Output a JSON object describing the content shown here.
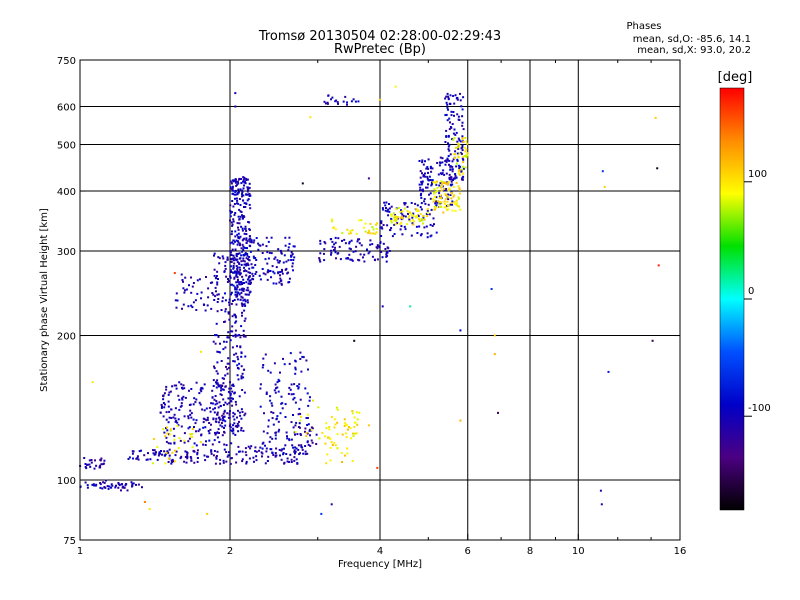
{
  "chart_data": {
    "type": "scatter",
    "title": "Tromsø 20130504 02:28:00-02:29:43",
    "subtitle": "RwPretec (Bp)",
    "xlabel": "Frequency [MHz]",
    "ylabel": "Stationary phase Virtual Height [km]",
    "x_scale": "log",
    "y_scale": "log",
    "xlim": [
      1,
      16
    ],
    "ylim": [
      75,
      750
    ],
    "x_ticks": [
      1,
      2,
      4,
      6,
      8,
      10,
      16
    ],
    "x_ticklabels": [
      "1",
      "2",
      "4",
      "6",
      "8",
      "10",
      "16"
    ],
    "x_minor": [
      3,
      5,
      7,
      9,
      12,
      14
    ],
    "y_ticks": [
      75,
      100,
      200,
      300,
      400,
      500,
      600,
      750
    ],
    "y_ticklabels": [
      "75",
      "100",
      "200",
      "300",
      "400",
      "500",
      "600",
      "750"
    ],
    "grid": true,
    "stats": {
      "heading": "Phases",
      "line_o": "mean, sd,O:  -85.6, 14.1",
      "line_x": "mean, sd,X:   93.0, 20.2"
    },
    "colorbar": {
      "label": "[deg]",
      "range": [
        -180,
        180
      ],
      "ticks": [
        100,
        0,
        -100
      ],
      "ticklabels": [
        "100",
        "0",
        "-100"
      ],
      "colors": [
        "#ff0000",
        "#ff8c00",
        "#ffff00",
        "#00e000",
        "#00ffff",
        "#0050ff",
        "#0000c8",
        "#4b0082",
        "#000000"
      ]
    },
    "series": [
      {
        "clusters": [
          {
            "f": [
              1.0,
              1.12
            ],
            "h": [
              105,
              112
            ],
            "phase": -110,
            "n": 25
          },
          {
            "f": [
              1.0,
              1.35
            ],
            "h": [
              96,
              99
            ],
            "phase": -105,
            "n": 35
          },
          {
            "f": [
              1.08,
              1.25
            ],
            "h": [
              95,
              100
            ],
            "phase": -110,
            "n": 15
          },
          {
            "f": [
              1.25,
              1.5
            ],
            "h": [
              110,
              116
            ],
            "phase": -105,
            "n": 40
          },
          {
            "f": [
              1.5,
              2.0
            ],
            "h": [
              108,
              116
            ],
            "phase": -108,
            "n": 60
          },
          {
            "f": [
              2.0,
              2.8
            ],
            "h": [
              108,
              118
            ],
            "phase": -110,
            "n": 70
          },
          {
            "f": [
              2.75,
              3.0
            ],
            "h": [
              118,
              130
            ],
            "phase": -110,
            "n": 20
          },
          {
            "f": [
              1.45,
              2.05
            ],
            "h": [
              118,
              160
            ],
            "phase": -105,
            "n": 200
          },
          {
            "f": [
              1.4,
              1.75
            ],
            "h": [
              108,
              130
            ],
            "phase": 95,
            "n": 28
          },
          {
            "f": [
              1.85,
              2.15
            ],
            "h": [
              125,
              300
            ],
            "phase": -105,
            "n": 280
          },
          {
            "f": [
              2.0,
              2.2
            ],
            "h": [
              230,
              430
            ],
            "phase": -100,
            "n": 300
          },
          {
            "f": [
              2.15,
              2.7
            ],
            "h": [
              255,
              320
            ],
            "phase": -102,
            "n": 120
          },
          {
            "f": [
              1.55,
              1.85
            ],
            "h": [
              225,
              265
            ],
            "phase": -108,
            "n": 40
          },
          {
            "f": [
              2.3,
              2.9
            ],
            "h": [
              112,
              185
            ],
            "phase": -100,
            "n": 140
          },
          {
            "f": [
              2.7,
              3.4
            ],
            "h": [
              120,
              150
            ],
            "phase": 95,
            "n": 18
          },
          {
            "f": [
              3.1,
              3.6
            ],
            "h": [
              108,
              132
            ],
            "phase": 100,
            "n": 40
          },
          {
            "f": [
              3.4,
              3.7
            ],
            "h": [
              128,
              140
            ],
            "phase": 100,
            "n": 12
          },
          {
            "f": [
              3.0,
              4.2
            ],
            "h": [
              285,
              320
            ],
            "phase": -105,
            "n": 90
          },
          {
            "f": [
              3.2,
              4.0
            ],
            "h": [
              325,
              350
            ],
            "phase": 95,
            "n": 30
          },
          {
            "f": [
              4.0,
              5.2
            ],
            "h": [
              320,
              380
            ],
            "phase": -100,
            "n": 90
          },
          {
            "f": [
              4.2,
              5.0
            ],
            "h": [
              340,
              370
            ],
            "phase": 95,
            "n": 60
          },
          {
            "f": [
              4.8,
              5.6
            ],
            "h": [
              370,
              470
            ],
            "phase": -100,
            "n": 120
          },
          {
            "f": [
              5.1,
              5.8
            ],
            "h": [
              360,
              420
            ],
            "phase": 100,
            "n": 90
          },
          {
            "f": [
              5.4,
              5.9
            ],
            "h": [
              420,
              640
            ],
            "phase": -100,
            "n": 120
          },
          {
            "f": [
              5.6,
              6.0
            ],
            "h": [
              430,
              520
            ],
            "phase": 95,
            "n": 40
          },
          {
            "f": [
              3.05,
              3.75
            ],
            "h": [
              605,
              635
            ],
            "phase": -100,
            "n": 20
          }
        ],
        "points": [
          {
            "f": 2.05,
            "h": 600,
            "phase": -110
          },
          {
            "f": 2.05,
            "h": 640,
            "phase": -100
          },
          {
            "f": 2.8,
            "h": 415,
            "phase": -170
          },
          {
            "f": 2.9,
            "h": 570,
            "phase": 100
          },
          {
            "f": 3.8,
            "h": 425,
            "phase": -130
          },
          {
            "f": 4.0,
            "h": 620,
            "phase": 110
          },
          {
            "f": 4.3,
            "h": 660,
            "phase": 95
          },
          {
            "f": 4.05,
            "h": 230,
            "phase": -100
          },
          {
            "f": 4.6,
            "h": 230,
            "phase": 20
          },
          {
            "f": 5.8,
            "h": 205,
            "phase": -90
          },
          {
            "f": 5.8,
            "h": 133,
            "phase": 120
          },
          {
            "f": 6.7,
            "h": 250,
            "phase": -60
          },
          {
            "f": 6.8,
            "h": 200,
            "phase": 110
          },
          {
            "f": 6.8,
            "h": 183,
            "phase": 120
          },
          {
            "f": 6.9,
            "h": 138,
            "phase": -150
          },
          {
            "f": 3.05,
            "h": 85,
            "phase": -60
          },
          {
            "f": 3.2,
            "h": 89,
            "phase": -110
          },
          {
            "f": 3.55,
            "h": 195,
            "phase": -170
          },
          {
            "f": 3.8,
            "h": 130,
            "phase": 110
          },
          {
            "f": 3.95,
            "h": 106,
            "phase": 160
          },
          {
            "f": 1.35,
            "h": 90,
            "phase": 140
          },
          {
            "f": 1.38,
            "h": 87,
            "phase": 100
          },
          {
            "f": 1.55,
            "h": 270,
            "phase": 160
          },
          {
            "f": 1.6,
            "h": 268,
            "phase": -110
          },
          {
            "f": 1.75,
            "h": 185,
            "phase": 100
          },
          {
            "f": 1.06,
            "h": 160,
            "phase": 100
          },
          {
            "f": 1.8,
            "h": 85,
            "phase": 110
          },
          {
            "f": 11.1,
            "h": 95,
            "phase": -110
          },
          {
            "f": 11.2,
            "h": 440,
            "phase": -60
          },
          {
            "f": 11.3,
            "h": 408,
            "phase": 110
          },
          {
            "f": 11.5,
            "h": 168,
            "phase": -80
          },
          {
            "f": 14.3,
            "h": 568,
            "phase": 110
          },
          {
            "f": 14.4,
            "h": 446,
            "phase": -170
          },
          {
            "f": 14.5,
            "h": 280,
            "phase": 170
          },
          {
            "f": 14.1,
            "h": 195,
            "phase": -150
          },
          {
            "f": 11.15,
            "h": 89,
            "phase": -110
          }
        ]
      }
    ]
  }
}
